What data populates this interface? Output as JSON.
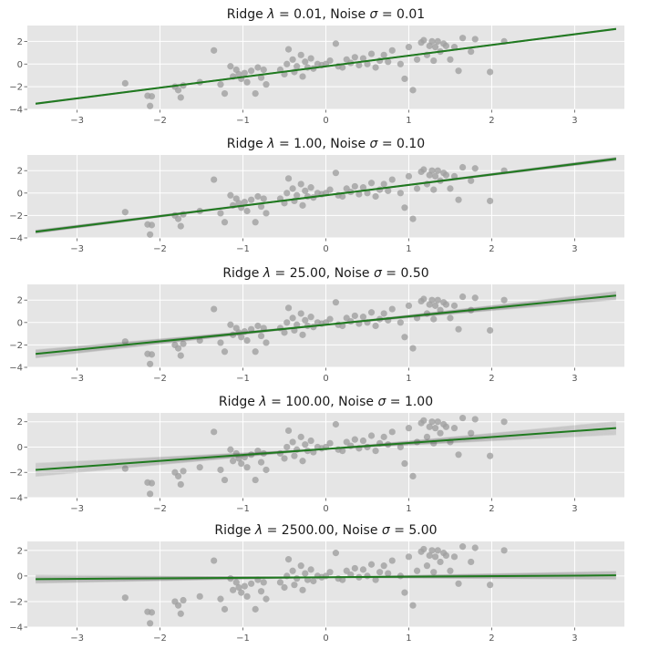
{
  "chart_data": [
    {
      "type": "scatter",
      "title": "Ridge λ = 0.01, Noise σ = 0.01",
      "title_parts": {
        "pre": "Ridge ",
        "sym1": "λ",
        "eq1": " = 0.01, Noise ",
        "sym2": "σ",
        "eq2": " = 0.01"
      },
      "xlim": [
        -3.6,
        3.6
      ],
      "ylim": [
        -4,
        3.4
      ],
      "xticks": [
        -3,
        -2,
        -1,
        0,
        1,
        2,
        3
      ],
      "yticks": [
        -4,
        -2,
        0,
        2
      ],
      "grid": true,
      "fit_line": {
        "x": [
          -3.5,
          3.5
        ],
        "y": [
          -3.5,
          3.1
        ],
        "band": 0.04
      }
    },
    {
      "type": "scatter",
      "title": "Ridge λ = 1.00, Noise σ = 0.10",
      "title_parts": {
        "pre": "Ridge ",
        "sym1": "λ",
        "eq1": " = 1.00, Noise ",
        "sym2": "σ",
        "eq2": " = 0.10"
      },
      "xlim": [
        -3.6,
        3.6
      ],
      "ylim": [
        -4,
        3.4
      ],
      "xticks": [
        -3,
        -2,
        -1,
        0,
        1,
        2,
        3
      ],
      "yticks": [
        -4,
        -2,
        0,
        2
      ],
      "grid": true,
      "fit_line": {
        "x": [
          -3.5,
          3.5
        ],
        "y": [
          -3.45,
          3.05
        ],
        "band": 0.12
      }
    },
    {
      "type": "scatter",
      "title": "Ridge λ = 25.00, Noise σ = 0.50",
      "title_parts": {
        "pre": "Ridge ",
        "sym1": "λ",
        "eq1": " = 25.00, Noise ",
        "sym2": "σ",
        "eq2": " = 0.50"
      },
      "xlim": [
        -3.6,
        3.6
      ],
      "ylim": [
        -4,
        3.4
      ],
      "xticks": [
        -3,
        -2,
        -1,
        0,
        1,
        2,
        3
      ],
      "yticks": [
        -4,
        -2,
        0,
        2
      ],
      "grid": true,
      "fit_line": {
        "x": [
          -3.5,
          3.5
        ],
        "y": [
          -2.8,
          2.4
        ],
        "band": 0.35
      }
    },
    {
      "type": "scatter",
      "title": "Ridge λ = 100.00, Noise σ = 1.00",
      "title_parts": {
        "pre": "Ridge ",
        "sym1": "λ",
        "eq1": " = 100.00, Noise ",
        "sym2": "σ",
        "eq2": " = 1.00"
      },
      "xlim": [
        -3.6,
        3.6
      ],
      "ylim": [
        -4,
        2.7
      ],
      "xticks": [
        -3,
        -2,
        -1,
        0,
        1,
        2,
        3
      ],
      "yticks": [
        -4,
        -2,
        0,
        2
      ],
      "grid": true,
      "fit_line": {
        "x": [
          -3.5,
          3.5
        ],
        "y": [
          -1.8,
          1.5
        ],
        "band": 0.5
      }
    },
    {
      "type": "scatter",
      "title": "Ridge λ = 2500.00, Noise σ = 5.00",
      "title_parts": {
        "pre": "Ridge ",
        "sym1": "λ",
        "eq1": " = 2500.00, Noise ",
        "sym2": "σ",
        "eq2": " = 5.00"
      },
      "xlim": [
        -3.6,
        3.6
      ],
      "ylim": [
        -4,
        2.7
      ],
      "xticks": [
        -3,
        -2,
        -1,
        0,
        1,
        2,
        3
      ],
      "yticks": [
        -4,
        -2,
        0,
        2
      ],
      "grid": true,
      "fit_line": {
        "x": [
          -3.5,
          3.5
        ],
        "y": [
          -0.25,
          0.05
        ],
        "band": 0.3
      }
    }
  ],
  "scatter_points": {
    "x": [
      -2.42,
      -2.15,
      -2.12,
      -2.1,
      -1.82,
      -1.78,
      -1.75,
      -1.72,
      -1.52,
      -1.35,
      -1.27,
      -1.22,
      -1.15,
      -1.12,
      -1.08,
      -1.05,
      -1.02,
      -0.98,
      -0.95,
      -0.9,
      -0.85,
      -0.82,
      -0.78,
      -0.75,
      -0.72,
      -0.55,
      -0.5,
      -0.47,
      -0.45,
      -0.4,
      -0.38,
      -0.35,
      -0.3,
      -0.28,
      -0.25,
      -0.22,
      -0.18,
      -0.15,
      -0.1,
      -0.05,
      0.0,
      0.05,
      0.12,
      0.15,
      0.2,
      0.25,
      0.3,
      0.35,
      0.4,
      0.45,
      0.5,
      0.55,
      0.6,
      0.65,
      0.7,
      0.75,
      0.8,
      0.9,
      0.95,
      1.0,
      1.05,
      1.1,
      1.15,
      1.18,
      1.22,
      1.25,
      1.28,
      1.3,
      1.32,
      1.35,
      1.38,
      1.42,
      1.45,
      1.5,
      1.55,
      1.6,
      1.65,
      1.75,
      1.8,
      1.98,
      2.15
    ],
    "y": [
      -1.7,
      -2.8,
      -3.7,
      -2.85,
      -2.0,
      -2.3,
      -2.95,
      -1.9,
      -1.6,
      1.2,
      -1.8,
      -2.6,
      -0.2,
      -1.1,
      -0.5,
      -0.9,
      -1.3,
      -0.8,
      -1.6,
      -0.6,
      -2.6,
      -0.3,
      -1.2,
      -0.5,
      -1.8,
      -0.5,
      -0.9,
      0.0,
      1.3,
      0.4,
      -0.7,
      -0.2,
      0.8,
      -1.1,
      0.2,
      -0.3,
      0.5,
      -0.4,
      0.0,
      -0.1,
      0.0,
      0.3,
      1.8,
      -0.2,
      -0.3,
      0.4,
      0.1,
      0.6,
      -0.1,
      0.5,
      0.0,
      0.9,
      -0.3,
      0.3,
      0.8,
      0.2,
      1.2,
      0.0,
      -1.3,
      1.5,
      -2.3,
      0.4,
      1.9,
      2.1,
      0.8,
      1.6,
      2.0,
      0.3,
      1.5,
      2.0,
      1.1,
      1.8,
      1.6,
      0.4,
      1.5,
      -0.6,
      2.3,
      1.1,
      2.2,
      -0.7,
      2.0
    ]
  },
  "colors": {
    "axes_bg": "#e5e5e5",
    "grid": "#ffffff",
    "points": "#a0a0a0",
    "fit_line": "#1f7a1f",
    "band": "#555555"
  }
}
